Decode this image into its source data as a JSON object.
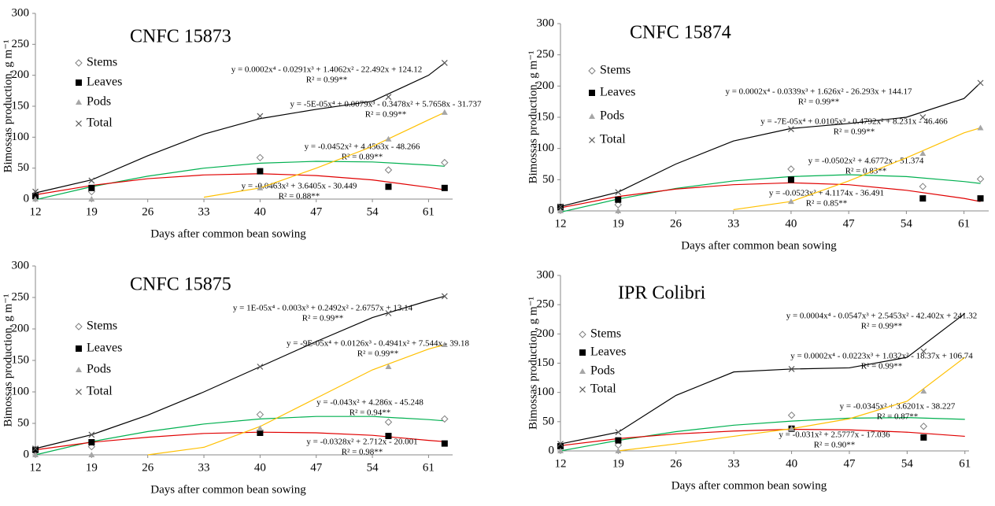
{
  "chart_data": [
    {
      "type": "scatter",
      "title": "CNFC 15873",
      "xlabel": "Days after common bean sowing",
      "ylabel": "Bimossas production, g m⁻¹",
      "x": [
        12,
        19,
        40,
        56,
        63
      ],
      "xlim": [
        12,
        64
      ],
      "xticks": [
        12,
        19,
        26,
        33,
        40,
        47,
        54,
        61
      ],
      "ylim": [
        0,
        300
      ],
      "yticks": [
        0,
        50,
        100,
        150,
        200,
        250,
        300
      ],
      "trend_x": [
        12,
        19,
        26,
        33,
        40,
        47,
        54,
        61,
        63
      ],
      "series": [
        {
          "name": "Stems",
          "marker": "diamond",
          "color": "#7f7f7f",
          "trend_color": "#00b050",
          "values": [
            8,
            12,
            67,
            47,
            59
          ],
          "trend": [
            -1,
            20,
            37,
            50,
            58,
            61,
            60,
            55,
            53
          ],
          "equation": "y = -0.0452x² + 4.4563x - 48.266",
          "r2": "R² = 0.89**"
        },
        {
          "name": "Leaves",
          "marker": "square",
          "color": "#000000",
          "trend_color": "#e00000",
          "values": [
            5,
            18,
            45,
            20,
            18
          ],
          "trend": [
            7,
            22,
            33,
            39,
            41,
            38,
            31,
            19,
            15
          ],
          "equation": "y = -0.0463x² + 3.6405x - 30.449",
          "r2": "R² = 0.88**"
        },
        {
          "name": "Pods",
          "marker": "triangle",
          "color": "#a6a6a6",
          "trend_color": "#ffc000",
          "values": [
            0,
            0,
            18,
            97,
            140
          ],
          "trend": [
            null,
            null,
            null,
            3,
            18,
            50,
            85,
            128,
            140
          ],
          "equation": "y = -5E-05x⁴ + 0.0079x³ - 0.3478x² + 5.7658x - 31.737",
          "r2": "R² = 0.99**"
        },
        {
          "name": "Total",
          "marker": "cross",
          "color": "#595959",
          "trend_color": "#000000",
          "values": [
            12,
            30,
            134,
            165,
            220
          ],
          "trend": [
            10,
            31,
            70,
            105,
            130,
            145,
            158,
            200,
            220
          ],
          "equation": "y = 0.0002x⁴ - 0.0291x³ + 1.4062x² - 22.492x + 124.12",
          "r2": "R² = 0.99**"
        }
      ]
    },
    {
      "type": "scatter",
      "title": "CNFC 15874",
      "xlabel": "Days after common bean sowing",
      "ylabel": "Bimossas production, g m⁻¹",
      "x": [
        12,
        19,
        40,
        56,
        63
      ],
      "xlim": [
        12,
        64
      ],
      "xticks": [
        12,
        19,
        26,
        33,
        40,
        47,
        54,
        61
      ],
      "ylim": [
        0,
        300
      ],
      "yticks": [
        0,
        50,
        100,
        150,
        200,
        250,
        300
      ],
      "trend_x": [
        12,
        19,
        26,
        33,
        40,
        47,
        54,
        61,
        63
      ],
      "series": [
        {
          "name": "Stems",
          "marker": "diamond",
          "color": "#7f7f7f",
          "trend_color": "#00b050",
          "values": [
            5,
            10,
            67,
            39,
            51
          ],
          "trend": [
            -2,
            19,
            36,
            48,
            55,
            58,
            55,
            47,
            44
          ],
          "equation": "y = -0.0502x² + 4.6772x - 51.374",
          "r2": "R² = 0.83**"
        },
        {
          "name": "Leaves",
          "marker": "square",
          "color": "#000000",
          "trend_color": "#e00000",
          "values": [
            6,
            18,
            50,
            20,
            20
          ],
          "trend": [
            5,
            23,
            35,
            42,
            45,
            42,
            33,
            20,
            15
          ],
          "equation": "y = -0.0523x² + 4.1174x - 36.491",
          "r2": "R² = 0.85**"
        },
        {
          "name": "Pods",
          "marker": "triangle",
          "color": "#a6a6a6",
          "trend_color": "#ffc000",
          "values": [
            0,
            0,
            15,
            92,
            133
          ],
          "trend": [
            null,
            null,
            null,
            2,
            15,
            48,
            85,
            125,
            133
          ],
          "equation": "y = -7E-05x⁴ + 0.0105x³ - 0.4792x² + 8.231x - 46.466",
          "r2": "R² = 0.99**"
        },
        {
          "name": "Total",
          "marker": "cross",
          "color": "#595959",
          "trend_color": "#000000",
          "values": [
            7,
            30,
            131,
            150,
            205
          ],
          "trend": [
            7,
            30,
            75,
            112,
            132,
            140,
            150,
            180,
            205
          ],
          "equation": "y = 0.0002x⁴ - 0.0339x³ + 1.626x² - 26.293x + 144.17",
          "r2": "R² = 0.99**"
        }
      ]
    },
    {
      "type": "scatter",
      "title": "CNFC 15875",
      "xlabel": "Days after common bean sowing",
      "ylabel": "Bimossas production, g m⁻¹",
      "x": [
        12,
        19,
        40,
        56,
        63
      ],
      "xlim": [
        12,
        64
      ],
      "xticks": [
        12,
        19,
        26,
        33,
        40,
        47,
        54,
        61
      ],
      "ylim": [
        0,
        300
      ],
      "yticks": [
        0,
        50,
        100,
        150,
        200,
        250,
        300
      ],
      "trend_x": [
        12,
        19,
        26,
        33,
        40,
        47,
        54,
        61,
        63
      ],
      "series": [
        {
          "name": "Stems",
          "marker": "diamond",
          "color": "#7f7f7f",
          "trend_color": "#00b050",
          "values": [
            5,
            13,
            64,
            52,
            57
          ],
          "trend": [
            0,
            21,
            37,
            49,
            57,
            61,
            61,
            56,
            54
          ],
          "equation": "y = -0.043x² + 4.286x - 45.248",
          "r2": "R² = 0.94**"
        },
        {
          "name": "Leaves",
          "marker": "square",
          "color": "#000000",
          "trend_color": "#e00000",
          "values": [
            8,
            20,
            35,
            30,
            18
          ],
          "trend": [
            8,
            20,
            28,
            34,
            36,
            35,
            31,
            23,
            21
          ],
          "equation": "y = -0.0328x² + 2.712x - 20.001",
          "r2": "R² = 0.98**"
        },
        {
          "name": "Pods",
          "marker": "triangle",
          "color": "#a6a6a6",
          "trend_color": "#ffc000",
          "values": [
            0,
            0,
            42,
            140,
            175
          ],
          "trend": [
            null,
            null,
            0,
            12,
            45,
            90,
            135,
            168,
            175
          ],
          "equation": "y = -9E-05x⁴ + 0.0126x³ - 0.4941x² + 7.544x - 39.18",
          "r2": "R² = 0.99**"
        },
        {
          "name": "Total",
          "marker": "cross",
          "color": "#595959",
          "trend_color": "#000000",
          "values": [
            10,
            32,
            140,
            225,
            252
          ],
          "trend": [
            10,
            32,
            63,
            100,
            140,
            180,
            218,
            245,
            252
          ],
          "equation": "y = 1E-05x⁴ - 0.003x³ + 0.2492x² - 2.6757x + 13.14",
          "r2": "R² = 0.99**"
        }
      ]
    },
    {
      "type": "scatter",
      "title": "IPR Colibri",
      "xlabel": "Days after common bean sowing",
      "ylabel": "Bimossas production, g m⁻¹",
      "x": [
        12,
        19,
        40,
        56
      ],
      "xlim": [
        12,
        61.5
      ],
      "xticks": [
        12,
        19,
        26,
        33,
        40,
        47,
        54,
        61
      ],
      "ylim": [
        0,
        300
      ],
      "yticks": [
        0,
        50,
        100,
        150,
        200,
        250,
        300
      ],
      "trend_x": [
        12,
        19,
        26,
        33,
        40,
        47,
        54,
        61
      ],
      "series": [
        {
          "name": "Stems",
          "marker": "diamond",
          "color": "#7f7f7f",
          "trend_color": "#00b050",
          "values": [
            8,
            10,
            61,
            42
          ],
          "trend": [
            0,
            18,
            33,
            44,
            51,
            56,
            57,
            54
          ],
          "equation": "y = -0.0345x² + 3.6201x - 38.227",
          "r2": "R² = 0.87**"
        },
        {
          "name": "Leaves",
          "marker": "square",
          "color": "#000000",
          "trend_color": "#e00000",
          "values": [
            8,
            18,
            38,
            23
          ],
          "trend": [
            9,
            21,
            29,
            34,
            37,
            36,
            32,
            25
          ],
          "equation": "y = -0.031x² + 2.5777x - 17.036",
          "r2": "R² = 0.90**"
        },
        {
          "name": "Pods",
          "marker": "triangle",
          "color": "#a6a6a6",
          "trend_color": "#ffc000",
          "values": [
            0,
            0,
            38,
            102
          ],
          "trend": [
            null,
            0,
            12,
            25,
            38,
            55,
            85,
            160
          ],
          "equation": "y = 0.0002x⁴ - 0.0223x³ + 1.032x² - 18.37x + 106.74",
          "r2": "R² = 0.99**"
        },
        {
          "name": "Total",
          "marker": "cross",
          "color": "#595959",
          "trend_color": "#000000",
          "values": [
            12,
            32,
            140,
            170
          ],
          "trend": [
            12,
            32,
            95,
            135,
            140,
            142,
            160,
            235
          ],
          "equation": "y = 0.0004x⁴ - 0.0547x³ + 2.5453x² - 42.402x + 241.32",
          "r2": "R² = 0.99**"
        }
      ]
    }
  ]
}
